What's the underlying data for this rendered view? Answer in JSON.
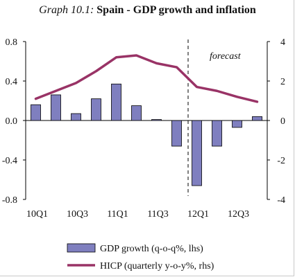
{
  "title_prefix": "Graph 10.1:",
  "title_main": "Spain - GDP growth and inflation",
  "chart_data": {
    "type": "bar+line",
    "categories": [
      "10Q1",
      "10Q2",
      "10Q3",
      "10Q4",
      "11Q1",
      "11Q2",
      "11Q3",
      "11Q4",
      "12Q1",
      "12Q2",
      "12Q3",
      "12Q4"
    ],
    "x_tick_labels": [
      "10Q1",
      "",
      "10Q3",
      "",
      "11Q1",
      "",
      "11Q3",
      "",
      "12Q1",
      "",
      "12Q3",
      ""
    ],
    "series": [
      {
        "name": "GDP growth (q-o-q%, lhs)",
        "type": "bar",
        "axis": "left",
        "color": "#7f7fbf",
        "values": [
          0.16,
          0.26,
          0.07,
          0.22,
          0.37,
          0.15,
          0.01,
          -0.26,
          -0.66,
          -0.26,
          -0.07,
          0.04
        ]
      },
      {
        "name": "HICP (quarterly y-o-y%, rhs)",
        "type": "line",
        "axis": "right",
        "color": "#993366",
        "values": [
          1.1,
          1.5,
          1.9,
          2.5,
          3.2,
          3.3,
          2.9,
          2.7,
          1.7,
          1.5,
          1.2,
          0.95
        ]
      }
    ],
    "y_left": {
      "min": -0.8,
      "max": 0.8,
      "ticks": [
        "0.8",
        "0.4",
        "0.0",
        "-0.4",
        "-0.8"
      ]
    },
    "y_right": {
      "min": -4,
      "max": 4,
      "ticks": [
        "4",
        "2",
        "0",
        "-2",
        "-4"
      ]
    },
    "annotation": "forecast",
    "forecast_start_after": "11Q4",
    "legend_position": "bottom"
  }
}
